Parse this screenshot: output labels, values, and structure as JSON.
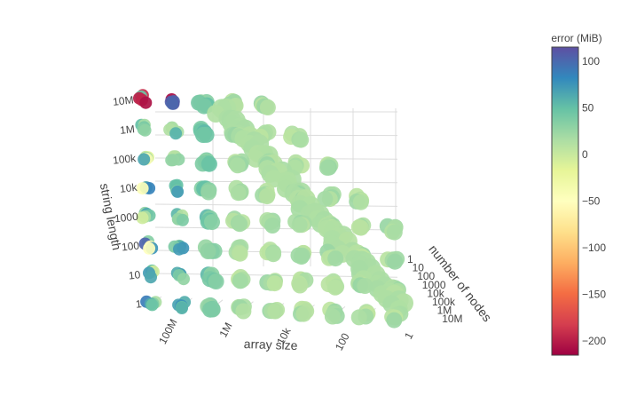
{
  "chart_data": {
    "type": "scatter",
    "subtype": "3d-scatter",
    "axes": {
      "x": {
        "label": "array size",
        "scale": "log",
        "ticks": [
          "100M",
          "1M",
          "10k",
          "100",
          "1"
        ]
      },
      "y": {
        "label": "number of nodes",
        "scale": "log",
        "ticks": [
          "1",
          "10",
          "100",
          "1000",
          "10k",
          "100k",
          "1M",
          "10M"
        ]
      },
      "z": {
        "label": "string length",
        "scale": "log",
        "ticks": [
          "10M",
          "1M",
          "100k",
          "10k",
          "1000",
          "100",
          "10",
          "1"
        ]
      }
    },
    "colorbar": {
      "title": "error (MiB)",
      "ticks": [
        "100",
        "50",
        "0",
        "−50",
        "−100",
        "−150",
        "−200"
      ],
      "range": [
        -215,
        115
      ],
      "colorscale": "Spectral"
    },
    "grid": true,
    "legend": "none"
  }
}
